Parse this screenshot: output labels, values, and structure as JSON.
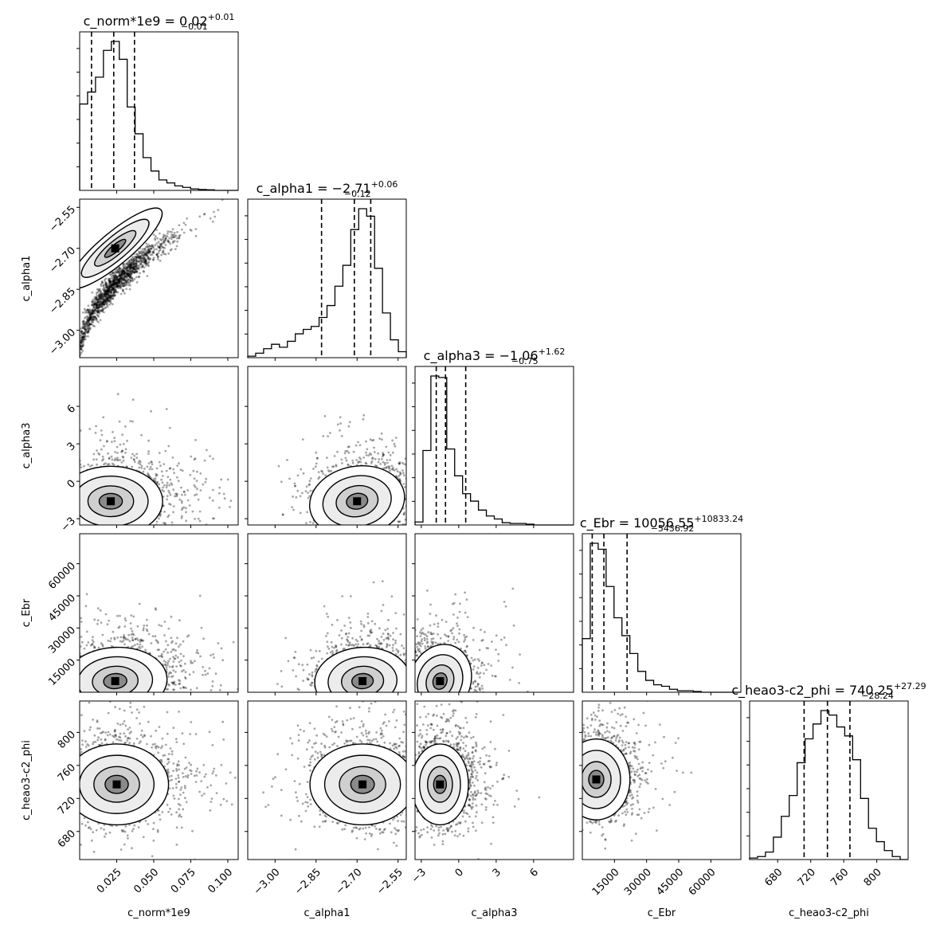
{
  "chart_data": {
    "type": "corner",
    "parameters": [
      {
        "name": "c_norm*1e9",
        "title": {
          "prefix": "c_norm*1e9 = 0.02",
          "plus": "+0.01",
          "minus": "−0.01"
        },
        "axis_label": "c_norm*1e9",
        "range": [
          0.0,
          0.107
        ],
        "ticks": [
          0.025,
          0.05,
          0.075,
          0.1
        ],
        "tick_labels": [
          "0.025",
          "0.050",
          "0.075",
          "0.100"
        ],
        "quantiles": [
          0.008,
          0.023,
          0.037
        ],
        "hist": [
          0.58,
          0.66,
          0.76,
          0.94,
          1.0,
          0.88,
          0.56,
          0.38,
          0.22,
          0.13,
          0.07,
          0.05,
          0.03,
          0.02,
          0.01,
          0.006,
          0.004,
          0.0,
          0.0,
          0.0
        ]
      },
      {
        "name": "c_alpha1",
        "title": {
          "prefix": "c_alpha1 = −2.71",
          "plus": "+0.06",
          "minus": "−0.12"
        },
        "axis_label": "c_alpha1",
        "range": [
          -3.1,
          -2.52
        ],
        "ticks": [
          -3.0,
          -2.85,
          -2.7,
          -2.55
        ],
        "tick_labels": [
          "−3.00",
          "−2.85",
          "−2.70",
          "−2.55"
        ],
        "quantiles": [
          -2.83,
          -2.71,
          -2.65
        ],
        "hist": [
          0.01,
          0.03,
          0.06,
          0.09,
          0.07,
          0.11,
          0.16,
          0.19,
          0.21,
          0.27,
          0.35,
          0.48,
          0.62,
          0.86,
          1.0,
          0.95,
          0.6,
          0.3,
          0.12,
          0.04
        ]
      },
      {
        "name": "c_alpha3",
        "title": {
          "prefix": "c_alpha3 = −1.06",
          "plus": "+1.62",
          "minus": "−0.75"
        },
        "axis_label": "c_alpha3",
        "range": [
          -3.5,
          9.2
        ],
        "ticks": [
          -3,
          0,
          3,
          6
        ],
        "tick_labels": [
          "−3",
          "0",
          "3",
          "6"
        ],
        "quantiles": [
          -1.8,
          -1.06,
          0.56
        ],
        "hist": [
          0.02,
          0.5,
          1.0,
          0.99,
          0.51,
          0.33,
          0.21,
          0.16,
          0.1,
          0.06,
          0.04,
          0.015,
          0.01,
          0.01,
          0.005,
          0.0,
          0.0,
          0.0,
          0.0,
          0.0
        ]
      },
      {
        "name": "c_Ebr",
        "title": {
          "prefix": "c_Ebr = 10056.55",
          "plus": "+10833.24",
          "minus": "−5436.92"
        },
        "axis_label": "c_Ebr",
        "range": [
          0,
          74000
        ],
        "ticks": [
          15000,
          30000,
          45000,
          60000
        ],
        "tick_labels": [
          "15000",
          "30000",
          "45000",
          "60000"
        ],
        "quantiles": [
          4620,
          10057,
          20890
        ],
        "hist": [
          0.36,
          1.0,
          0.96,
          0.71,
          0.5,
          0.38,
          0.26,
          0.14,
          0.08,
          0.05,
          0.04,
          0.02,
          0.01,
          0.01,
          0.005,
          0.0,
          0.0,
          0.0,
          0.0,
          0.0
        ]
      },
      {
        "name": "c_heao3-c2_phi",
        "title": {
          "prefix": "c_heao3-c2_phi = 740.25",
          "plus": "+27.29",
          "minus": "−28.24"
        },
        "axis_label": "c_heao3-c2_phi",
        "range": [
          646,
          838
        ],
        "ticks": [
          680,
          720,
          760,
          800
        ],
        "tick_labels": [
          "680",
          "720",
          "760",
          "800"
        ],
        "quantiles": [
          712.0,
          740.25,
          767.5
        ],
        "hist": [
          0.01,
          0.02,
          0.05,
          0.15,
          0.29,
          0.43,
          0.65,
          0.81,
          0.91,
          1.0,
          0.97,
          0.89,
          0.83,
          0.67,
          0.41,
          0.21,
          0.12,
          0.06,
          0.02,
          0.0
        ]
      }
    ],
    "pairs": [
      {
        "x": 0,
        "y": 1,
        "peak": [
          0.024,
          -2.7
        ],
        "curve": "ridge"
      },
      {
        "x": 0,
        "y": 2,
        "peak": [
          0.021,
          -1.6
        ],
        "spread": [
          0.02,
          1.6
        ],
        "corr": 0.0
      },
      {
        "x": 1,
        "y": 2,
        "peak": [
          -2.7,
          -1.6
        ],
        "spread": [
          0.1,
          1.6
        ],
        "corr": 0.3
      },
      {
        "x": 0,
        "y": 3,
        "peak": [
          0.024,
          5200
        ],
        "spread": [
          0.02,
          9000
        ],
        "corr": 0.1
      },
      {
        "x": 1,
        "y": 3,
        "peak": [
          -2.68,
          5200
        ],
        "spread": [
          0.1,
          9000
        ],
        "corr": 0.1
      },
      {
        "x": 2,
        "y": 3,
        "peak": [
          -1.5,
          5200
        ],
        "spread": [
          1.4,
          10000
        ],
        "corr": -0.6
      },
      {
        "x": 0,
        "y": 4,
        "peak": [
          0.025,
          737
        ],
        "spread": [
          0.02,
          28
        ],
        "corr": 0.0
      },
      {
        "x": 1,
        "y": 4,
        "peak": [
          -2.68,
          737
        ],
        "spread": [
          0.11,
          28
        ],
        "corr": 0.0
      },
      {
        "x": 2,
        "y": 4,
        "peak": [
          -1.5,
          737
        ],
        "spread": [
          1.3,
          28
        ],
        "corr": 0.0
      },
      {
        "x": 3,
        "y": 4,
        "peak": [
          6500,
          743
        ],
        "spread": [
          9000,
          28
        ],
        "corr": 0.0
      }
    ]
  }
}
